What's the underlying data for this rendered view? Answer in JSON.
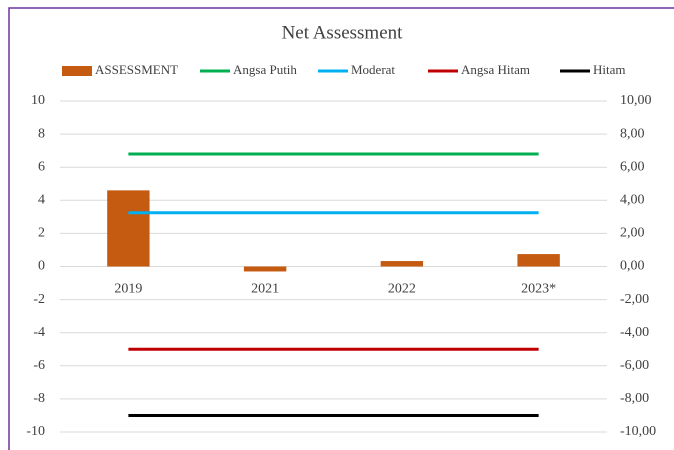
{
  "chart_data": {
    "type": "bar",
    "title": "Net Assessment",
    "categories": [
      "2019",
      "2021",
      "2022",
      "2023*"
    ],
    "series": [
      {
        "name": "ASSESSMENT",
        "type": "bar",
        "color": "#c55a11",
        "values": [
          4.6,
          -0.3,
          0.33,
          0.75
        ]
      },
      {
        "name": "Angsa Putih",
        "type": "line",
        "axis": "y2",
        "color": "#00b050",
        "values": [
          6.8,
          6.8,
          6.8,
          6.8
        ]
      },
      {
        "name": "Moderat",
        "type": "line",
        "axis": "y2",
        "color": "#00b0f0",
        "values": [
          3.25,
          3.25,
          3.25,
          3.25
        ]
      },
      {
        "name": "Angsa Hitam",
        "type": "line",
        "axis": "y2",
        "color": "#c00000",
        "values": [
          -5,
          -5,
          -5,
          -5
        ]
      },
      {
        "name": "Hitam",
        "type": "line",
        "axis": "y2",
        "color": "#000000",
        "values": [
          -9,
          -9,
          -9,
          -9
        ]
      }
    ],
    "ylim": [
      -10,
      10
    ],
    "yticks": [
      -10,
      -8,
      -6,
      -4,
      -2,
      0,
      2,
      4,
      6,
      8,
      10
    ],
    "y2lim": [
      -10,
      10
    ],
    "y2ticks": [
      {
        "value": -10,
        "label": "-10,00"
      },
      {
        "value": -8,
        "label": "-8,00"
      },
      {
        "value": -6,
        "label": "-6,00"
      },
      {
        "value": -4,
        "label": "-4,00"
      },
      {
        "value": -2,
        "label": "-2,00"
      },
      {
        "value": 0,
        "label": "0,00"
      },
      {
        "value": 2,
        "label": "2,00"
      },
      {
        "value": 4,
        "label": "4,00"
      },
      {
        "value": 6,
        "label": "6,00"
      },
      {
        "value": 8,
        "label": "8,00"
      },
      {
        "value": 10,
        "label": "10,00"
      }
    ],
    "grid": true,
    "legend": "top"
  }
}
